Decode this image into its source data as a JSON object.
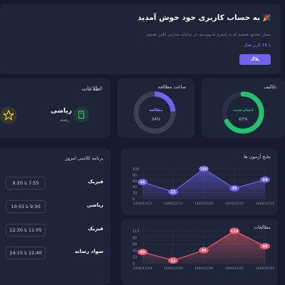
{
  "welcome": {
    "title": "به حساب کاربری خود خوش آمدید",
    "subtitle": "بسیار خشنود هستیم که به پلتفرم ما پیوستید، در سامانه مدارس آنلاین هستیم",
    "users_line": "با 16 کاربر فعال",
    "button_label": "بلاگ"
  },
  "assignments": {
    "title": "تکالیف",
    "status": "انجام شده",
    "percent_text": "67%",
    "percent": 67,
    "color": "#22c36b"
  },
  "study_time": {
    "title": "ساعت مطالعه",
    "status": "مطالعه",
    "percent_text": "24%",
    "percent": 24,
    "color": "#6c63f2"
  },
  "info": {
    "title": "اطلاعات",
    "subject": "ریاضی",
    "field": "رشته"
  },
  "schedule": {
    "title": "برنامه کلاسی امروز",
    "rows": [
      {
        "course": "فیزیک",
        "time": "7:55 تا 9:20"
      },
      {
        "course": "ریاضی",
        "time": "9:30 تا 10:55"
      },
      {
        "course": "فیزیک",
        "time": "11:05 تا 12:30"
      },
      {
        "course": "سواد رسانه",
        "time": "12:40 تا 14:15"
      }
    ]
  },
  "chart_data": [
    {
      "type": "area",
      "title": "نتایج آزمون ها",
      "categories": [
        "1400/12/12",
        "1400/12/13",
        "1400/12/14",
        "1400/12/15",
        "1400/12/15"
      ],
      "values": [
        56,
        23,
        100,
        35,
        64
      ],
      "yticks": [
        0,
        20,
        40,
        60,
        80,
        100
      ],
      "ylim": [
        0,
        100
      ],
      "color": "#6c63f2"
    },
    {
      "type": "area",
      "title": "مطالعات",
      "categories": [
        "1400/12/19",
        "1400/12/19",
        "1400/12/20",
        "1400/12/21",
        "1400/12/22"
      ],
      "values": [
        40,
        11,
        46,
        113,
        60
      ],
      "yticks": [
        0,
        23,
        45,
        68,
        90,
        113
      ],
      "ylim": [
        0,
        113
      ],
      "color": "#e85a6a"
    }
  ]
}
